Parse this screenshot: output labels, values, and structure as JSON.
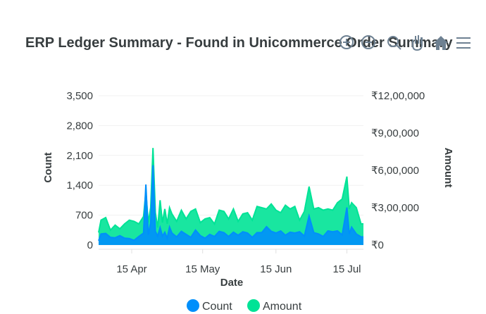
{
  "toolbar": {
    "icons": [
      "zoom-in-icon",
      "zoom-out-icon",
      "selection-zoom-icon",
      "pan-hand-icon",
      "reset-home-icon",
      "menu-icon"
    ],
    "active_icon": "selection-zoom-icon",
    "active_color": "#008ffb",
    "icon_color": "#6e8192"
  },
  "chart_data": {
    "type": "area",
    "title": "ERP Ledger Summary - Found in Unicommerce Order Summary",
    "xlabel": "Date",
    "x_tick_labels": [
      "15 Apr",
      "15 May",
      "15 Jun",
      "15 Jul"
    ],
    "x_tick_dates": [
      "2024-04-15",
      "2024-05-15",
      "2024-06-15",
      "2024-07-15"
    ],
    "x_range": [
      "2024-04-01",
      "2024-07-22"
    ],
    "y_left": {
      "label": "Count",
      "ylim": [
        0,
        3500
      ],
      "ticks": [
        "0",
        "700",
        "1,400",
        "2,100",
        "2,800",
        "3,500"
      ]
    },
    "y_right": {
      "label": "Amount",
      "ylim": [
        0,
        1200000
      ],
      "ticks": [
        "₹0",
        "₹3,00,000",
        "₹6,00,000",
        "₹9,00,000",
        "₹12,00,000"
      ]
    },
    "grid": true,
    "legend_position": "bottom",
    "series": [
      {
        "name": "Count",
        "axis": "left",
        "color": "#008ffb",
        "dates": [
          "2024-04-01",
          "2024-04-02",
          "2024-04-04",
          "2024-04-06",
          "2024-04-08",
          "2024-04-10",
          "2024-04-12",
          "2024-04-14",
          "2024-04-16",
          "2024-04-18",
          "2024-04-20",
          "2024-04-21",
          "2024-04-22",
          "2024-04-23",
          "2024-04-24",
          "2024-04-25",
          "2024-04-26",
          "2024-04-27",
          "2024-04-28",
          "2024-04-29",
          "2024-04-30",
          "2024-05-01",
          "2024-05-02",
          "2024-05-04",
          "2024-05-06",
          "2024-05-08",
          "2024-05-10",
          "2024-05-12",
          "2024-05-14",
          "2024-05-16",
          "2024-05-18",
          "2024-05-20",
          "2024-05-22",
          "2024-05-24",
          "2024-05-26",
          "2024-05-28",
          "2024-05-30",
          "2024-06-01",
          "2024-06-03",
          "2024-06-05",
          "2024-06-07",
          "2024-06-09",
          "2024-06-11",
          "2024-06-13",
          "2024-06-15",
          "2024-06-17",
          "2024-06-19",
          "2024-06-21",
          "2024-06-23",
          "2024-06-25",
          "2024-06-27",
          "2024-06-29",
          "2024-07-01",
          "2024-07-03",
          "2024-07-05",
          "2024-07-07",
          "2024-07-09",
          "2024-07-11",
          "2024-07-13",
          "2024-07-15",
          "2024-07-16",
          "2024-07-17",
          "2024-07-19",
          "2024-07-21",
          "2024-07-22"
        ],
        "values": [
          100,
          260,
          270,
          180,
          170,
          220,
          160,
          150,
          110,
          200,
          280,
          1420,
          240,
          520,
          1870,
          320,
          210,
          410,
          210,
          300,
          160,
          420,
          280,
          190,
          320,
          250,
          180,
          350,
          220,
          160,
          250,
          200,
          320,
          290,
          200,
          300,
          230,
          310,
          280,
          180,
          290,
          290,
          430,
          320,
          280,
          330,
          230,
          300,
          280,
          310,
          210,
          680,
          290,
          260,
          200,
          330,
          310,
          330,
          240,
          880,
          260,
          420,
          260,
          190,
          190
        ]
      },
      {
        "name": "Amount",
        "axis": "right",
        "color": "#00e396",
        "dates": [
          "2024-04-01",
          "2024-04-02",
          "2024-04-04",
          "2024-04-06",
          "2024-04-08",
          "2024-04-10",
          "2024-04-12",
          "2024-04-14",
          "2024-04-16",
          "2024-04-18",
          "2024-04-20",
          "2024-04-21",
          "2024-04-22",
          "2024-04-23",
          "2024-04-24",
          "2024-04-25",
          "2024-04-26",
          "2024-04-27",
          "2024-04-28",
          "2024-04-29",
          "2024-04-30",
          "2024-05-01",
          "2024-05-02",
          "2024-05-04",
          "2024-05-06",
          "2024-05-08",
          "2024-05-10",
          "2024-05-12",
          "2024-05-14",
          "2024-05-16",
          "2024-05-18",
          "2024-05-20",
          "2024-05-22",
          "2024-05-24",
          "2024-05-26",
          "2024-05-28",
          "2024-05-30",
          "2024-06-01",
          "2024-06-03",
          "2024-06-05",
          "2024-06-07",
          "2024-06-09",
          "2024-06-11",
          "2024-06-13",
          "2024-06-15",
          "2024-06-17",
          "2024-06-19",
          "2024-06-21",
          "2024-06-23",
          "2024-06-25",
          "2024-06-27",
          "2024-06-29",
          "2024-07-01",
          "2024-07-03",
          "2024-07-05",
          "2024-07-07",
          "2024-07-09",
          "2024-07-11",
          "2024-07-13",
          "2024-07-15",
          "2024-07-16",
          "2024-07-17",
          "2024-07-19",
          "2024-07-21",
          "2024-07-22"
        ],
        "values": [
          100000,
          200000,
          220000,
          120000,
          160000,
          130000,
          170000,
          200000,
          190000,
          170000,
          230000,
          430000,
          180000,
          300000,
          780000,
          260000,
          140000,
          360000,
          180000,
          290000,
          170000,
          300000,
          250000,
          190000,
          280000,
          210000,
          270000,
          290000,
          180000,
          210000,
          220000,
          170000,
          280000,
          270000,
          210000,
          290000,
          190000,
          250000,
          260000,
          200000,
          310000,
          300000,
          290000,
          330000,
          280000,
          260000,
          320000,
          290000,
          310000,
          200000,
          270000,
          470000,
          290000,
          300000,
          280000,
          290000,
          280000,
          340000,
          370000,
          550000,
          290000,
          340000,
          300000,
          170000,
          170000
        ]
      }
    ]
  }
}
